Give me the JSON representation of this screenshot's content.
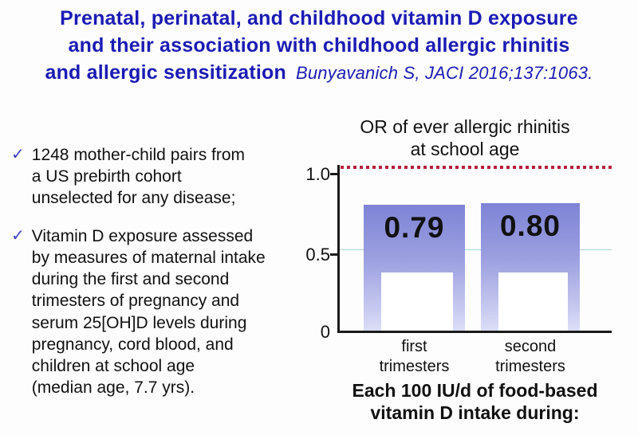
{
  "slide_title": {
    "line1": "Prenatal, perinatal, and childhood vitamin D exposure",
    "line2": "and their association with childhood allergic rhinitis",
    "line3": "and allergic sensitization",
    "citation": "Bunyavanich S, JACI 2016;137:1063.",
    "color": "#1b1bb5"
  },
  "bullets": {
    "marker": "✓",
    "marker_color": "#3c3cc0",
    "items": [
      {
        "text": "1248 mother-child pairs from\na US prebirth cohort\nunselected for any disease;"
      },
      {
        "text": "Vitamin D exposure assessed\nby measures of maternal intake\nduring the first and second\ntrimesters of pregnancy and\nserum 25[OH]D levels during\npregnancy, cord blood, and\nchildren at school age\n(median age, 7.7 yrs)."
      }
    ]
  },
  "chart_data": {
    "type": "bar",
    "title": "OR of ever allergic rhinitis\nat school age",
    "categories": [
      "first\ntrimesters",
      "second\ntrimesters"
    ],
    "values": [
      0.79,
      0.8
    ],
    "bar_labels": [
      "0.79",
      "0.80"
    ],
    "xlabel": "",
    "ylabel": "",
    "ylim": [
      0,
      1.08
    ],
    "ytick_labels": [
      "1.0",
      "0.5",
      "0"
    ],
    "ytick_values": [
      1.0,
      0.5,
      0
    ],
    "grid": false,
    "legend": "none",
    "reference_line": {
      "value": 1.0,
      "style": "dotted",
      "color": "#b5203c"
    },
    "secondary_gridline": {
      "value": 0.5,
      "color": "#a7d3dc"
    },
    "caption": "Each 100 IU/d of food-based\nvitamin D intake during:",
    "colors": {
      "bar_gradient_top": "#7e83d6",
      "bar_gradient_bottom": "#dcdef7",
      "bar_inner_cutout": "#ffffff",
      "axis": "#1a1a1a",
      "text": "#111111"
    }
  }
}
